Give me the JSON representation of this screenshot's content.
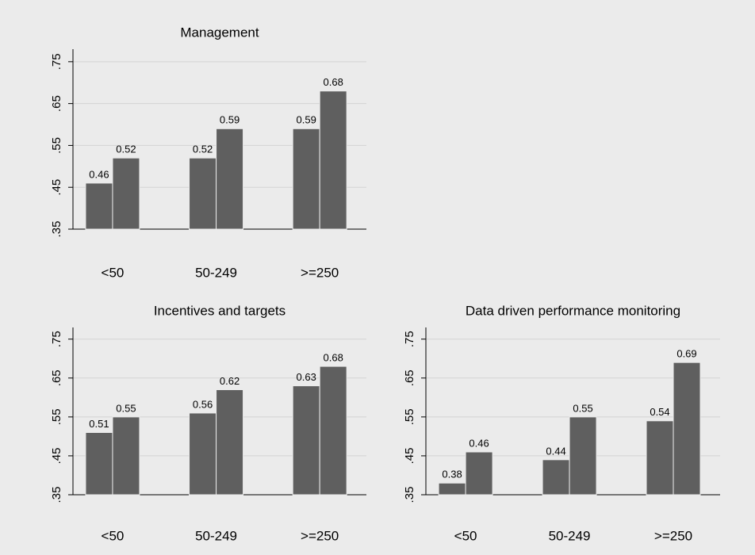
{
  "chart_data": [
    {
      "type": "bar",
      "title": "Management",
      "categories": [
        "<50",
        "50-249",
        ">=250"
      ],
      "series": [
        {
          "color": "#5f5f5f",
          "values": [
            0.46,
            0.52,
            0.59
          ]
        },
        {
          "color": "#5f5f5f",
          "values": [
            0.52,
            0.59,
            0.68
          ]
        }
      ],
      "ylim": [
        0.35,
        0.78
      ],
      "yticks": [
        {
          "value": 0.35,
          "label": ".35"
        },
        {
          "value": 0.45,
          "label": ".45"
        },
        {
          "value": 0.55,
          "label": ".55"
        },
        {
          "value": 0.65,
          "label": ".65"
        },
        {
          "value": 0.75,
          "label": ".75"
        }
      ],
      "grid": true
    },
    {
      "type": "bar",
      "title": "Incentives and targets",
      "categories": [
        "<50",
        "50-249",
        ">=250"
      ],
      "series": [
        {
          "color": "#5f5f5f",
          "values": [
            0.51,
            0.56,
            0.63
          ]
        },
        {
          "color": "#5f5f5f",
          "values": [
            0.55,
            0.62,
            0.68
          ]
        }
      ],
      "ylim": [
        0.35,
        0.78
      ],
      "yticks": [
        {
          "value": 0.35,
          "label": ".35"
        },
        {
          "value": 0.45,
          "label": ".45"
        },
        {
          "value": 0.55,
          "label": ".55"
        },
        {
          "value": 0.65,
          "label": ".65"
        },
        {
          "value": 0.75,
          "label": ".75"
        }
      ],
      "grid": true
    },
    {
      "type": "bar",
      "title": "Data driven performance monitoring",
      "categories": [
        "<50",
        "50-249",
        ">=250"
      ],
      "series": [
        {
          "color": "#5f5f5f",
          "values": [
            0.38,
            0.44,
            0.54
          ]
        },
        {
          "color": "#5f5f5f",
          "values": [
            0.46,
            0.55,
            0.69
          ]
        }
      ],
      "ylim": [
        0.35,
        0.78
      ],
      "yticks": [
        {
          "value": 0.35,
          "label": ".35"
        },
        {
          "value": 0.45,
          "label": ".45"
        },
        {
          "value": 0.55,
          "label": ".55"
        },
        {
          "value": 0.65,
          "label": ".65"
        },
        {
          "value": 0.75,
          "label": ".75"
        }
      ],
      "grid": true
    }
  ]
}
